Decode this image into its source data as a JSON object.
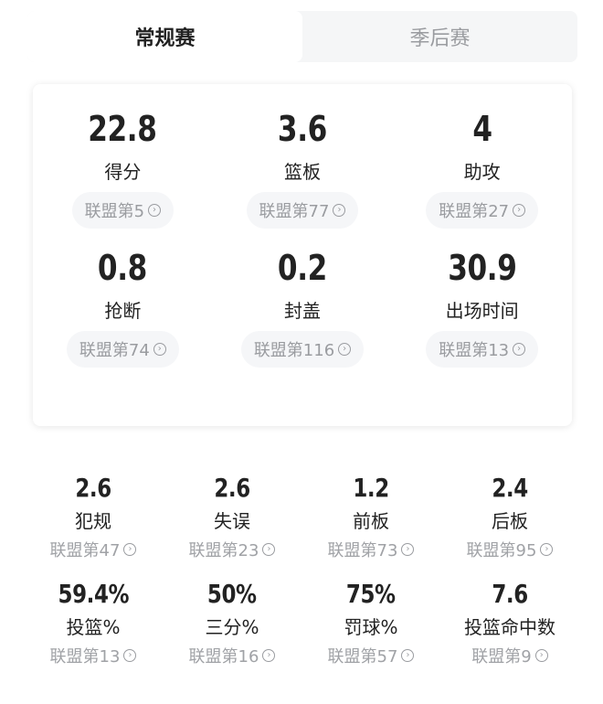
{
  "tabs": [
    {
      "label": "常规赛",
      "active": true
    },
    {
      "label": "季后赛",
      "active": false
    }
  ],
  "main_stats": [
    {
      "value": "22.8",
      "label": "得分",
      "rank": "联盟第5"
    },
    {
      "value": "3.6",
      "label": "篮板",
      "rank": "联盟第77"
    },
    {
      "value": "4",
      "label": "助攻",
      "rank": "联盟第27"
    },
    {
      "value": "0.8",
      "label": "抢断",
      "rank": "联盟第74"
    },
    {
      "value": "0.2",
      "label": "封盖",
      "rank": "联盟第116"
    },
    {
      "value": "30.9",
      "label": "出场时间",
      "rank": "联盟第13"
    }
  ],
  "other_stats": [
    {
      "value": "2.6",
      "label": "犯规",
      "rank": "联盟第47"
    },
    {
      "value": "2.6",
      "label": "失误",
      "rank": "联盟第23"
    },
    {
      "value": "1.2",
      "label": "前板",
      "rank": "联盟第73"
    },
    {
      "value": "2.4",
      "label": "后板",
      "rank": "联盟第95"
    },
    {
      "value": "59.4%",
      "label": "投篮%",
      "rank": "联盟第13"
    },
    {
      "value": "50%",
      "label": "三分%",
      "rank": "联盟第16"
    },
    {
      "value": "75%",
      "label": "罚球%",
      "rank": "联盟第57"
    },
    {
      "value": "7.6",
      "label": "投篮命中数",
      "rank": "联盟第9"
    }
  ],
  "icons": {
    "rank_chevron": "chevron-right-circle-icon"
  },
  "colors": {
    "text": "#222222",
    "muted": "#9a9ca0",
    "pill_bg": "#f5f6f8",
    "tab_bg": "#f5f6f7"
  }
}
